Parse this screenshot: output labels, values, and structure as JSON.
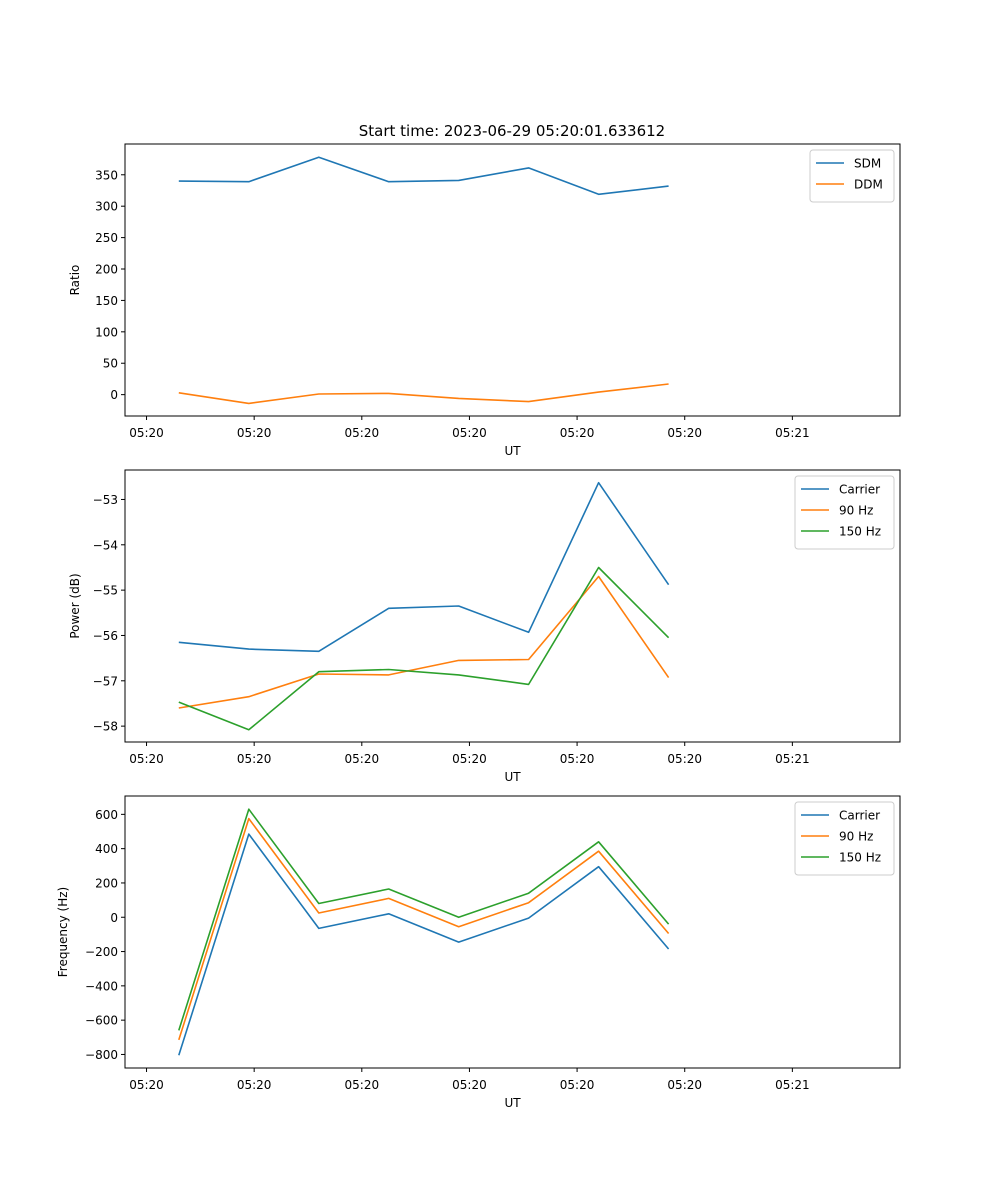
{
  "title": "Start time: 2023-06-29 05:20:01.633612",
  "chart_data": [
    {
      "type": "line",
      "xlabel": "UT",
      "ylabel": "Ratio",
      "x_tick_labels": [
        "05:20",
        "05:20",
        "05:20",
        "05:20",
        "05:20",
        "05:20",
        "05:21"
      ],
      "xlim": [
        0,
        7.2
      ],
      "ylim": [
        -34,
        399
      ],
      "y_ticks": [
        0,
        50,
        100,
        150,
        200,
        250,
        300,
        350
      ],
      "legend": "top-right",
      "x": [
        0.5,
        1.15,
        1.8,
        2.45,
        3.1,
        3.75,
        4.4,
        5.05
      ],
      "series": [
        {
          "name": "SDM",
          "color": "#1f77b4",
          "values": [
            340,
            339,
            378,
            339,
            341,
            361,
            319,
            332
          ]
        },
        {
          "name": "DDM",
          "color": "#ff7f0e",
          "values": [
            3,
            -14,
            1,
            2,
            -6,
            -11,
            4,
            17
          ]
        }
      ]
    },
    {
      "type": "line",
      "xlabel": "UT",
      "ylabel": "Power (dB)",
      "x_tick_labels": [
        "05:20",
        "05:20",
        "05:20",
        "05:20",
        "05:20",
        "05:20",
        "05:21"
      ],
      "xlim": [
        0,
        7.2
      ],
      "ylim": [
        -58.35,
        -52.35
      ],
      "y_ticks": [
        -58,
        -57,
        -56,
        -55,
        -54,
        -53
      ],
      "legend": "top-right",
      "x": [
        0.5,
        1.15,
        1.8,
        2.45,
        3.1,
        3.75,
        4.4,
        5.05
      ],
      "series": [
        {
          "name": "Carrier",
          "color": "#1f77b4",
          "values": [
            -56.15,
            -56.3,
            -56.35,
            -55.4,
            -55.35,
            -55.93,
            -52.63,
            -54.88
          ]
        },
        {
          "name": "90 Hz",
          "color": "#ff7f0e",
          "values": [
            -57.6,
            -57.35,
            -56.85,
            -56.87,
            -56.55,
            -56.53,
            -54.7,
            -56.93
          ]
        },
        {
          "name": "150 Hz",
          "color": "#2ca02c",
          "values": [
            -57.47,
            -58.08,
            -56.8,
            -56.75,
            -56.87,
            -57.08,
            -54.5,
            -56.05
          ]
        }
      ]
    },
    {
      "type": "line",
      "xlabel": "UT",
      "ylabel": "Frequency (Hz)",
      "x_tick_labels": [
        "05:20",
        "05:20",
        "05:20",
        "05:20",
        "05:20",
        "05:20",
        "05:21"
      ],
      "xlim": [
        0,
        7.2
      ],
      "ylim": [
        -879,
        707
      ],
      "y_ticks": [
        -800,
        -600,
        -400,
        -200,
        0,
        200,
        400,
        600
      ],
      "legend": "top-right",
      "x": [
        0.5,
        1.15,
        1.8,
        2.45,
        3.1,
        3.75,
        4.4,
        5.05
      ],
      "series": [
        {
          "name": "Carrier",
          "color": "#1f77b4",
          "values": [
            -805,
            485,
            -65,
            20,
            -145,
            -5,
            295,
            -185
          ]
        },
        {
          "name": "90 Hz",
          "color": "#ff7f0e",
          "values": [
            -715,
            575,
            25,
            110,
            -55,
            85,
            385,
            -95
          ]
        },
        {
          "name": "150 Hz",
          "color": "#2ca02c",
          "values": [
            -660,
            630,
            80,
            165,
            0,
            140,
            440,
            -40
          ]
        }
      ]
    }
  ]
}
